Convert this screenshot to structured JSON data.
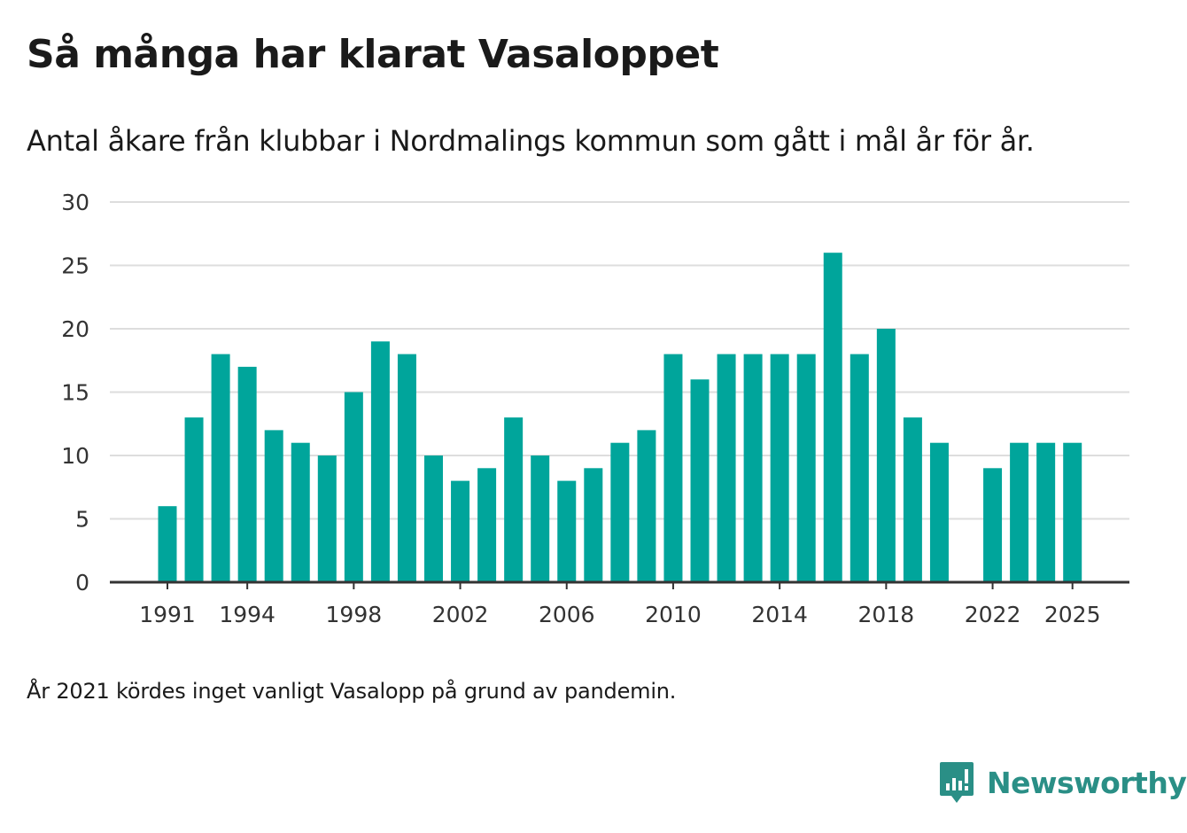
{
  "title": "Så många har klarat Vasaloppet",
  "subtitle": "Antal åkare från klubbar i Nordmalings kommun som gått i mål år för år.",
  "note": "År 2021 kördes inget vanligt Vasalopp på grund av pandemin.",
  "brand": {
    "name": "Newsworthy",
    "icon": "newsworthy-logo-icon",
    "color": "#2a8f86"
  },
  "chart_data": {
    "type": "bar",
    "title": "Så många har klarat Vasaloppet",
    "xlabel": "",
    "ylabel": "",
    "ylim": [
      0,
      30
    ],
    "yticks": [
      0,
      5,
      10,
      15,
      20,
      25,
      30
    ],
    "xticks": [
      1991,
      1994,
      1998,
      2002,
      2006,
      2010,
      2014,
      2018,
      2022,
      2025
    ],
    "grid": true,
    "bar_color": "#00a59b",
    "categories": [
      1991,
      1992,
      1993,
      1994,
      1995,
      1996,
      1997,
      1998,
      1999,
      2000,
      2001,
      2002,
      2003,
      2004,
      2005,
      2006,
      2007,
      2008,
      2009,
      2010,
      2011,
      2012,
      2013,
      2014,
      2015,
      2016,
      2017,
      2018,
      2019,
      2020,
      2021,
      2022,
      2023,
      2024,
      2025
    ],
    "values": [
      6,
      13,
      18,
      17,
      12,
      11,
      10,
      15,
      19,
      18,
      10,
      8,
      9,
      13,
      10,
      8,
      9,
      11,
      12,
      18,
      16,
      18,
      18,
      18,
      18,
      26,
      18,
      20,
      13,
      11,
      null,
      9,
      11,
      11,
      11
    ]
  }
}
